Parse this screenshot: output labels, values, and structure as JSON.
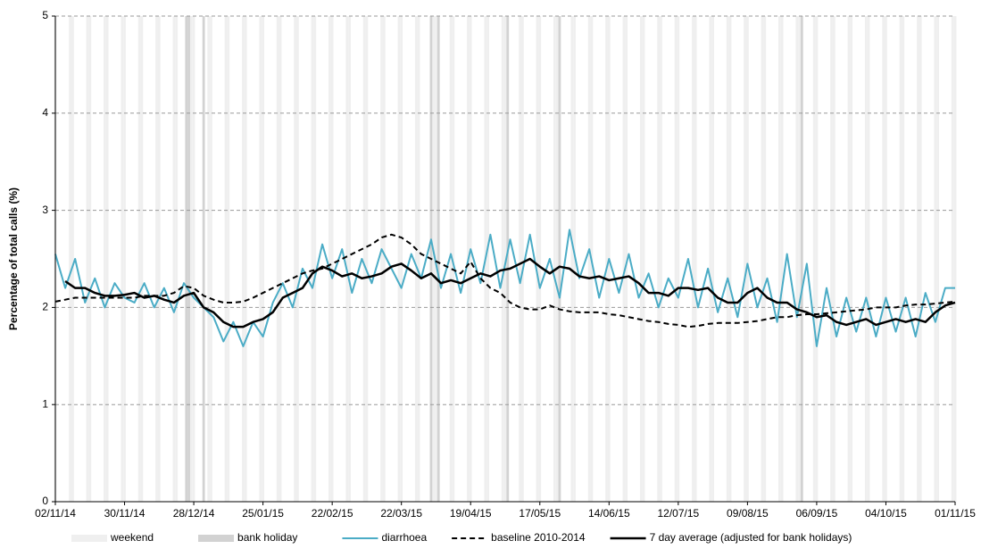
{
  "chart_data": {
    "type": "line",
    "y_label": "Percentage of total calls (%)",
    "ylim": [
      0,
      5
    ],
    "yticks": [
      0,
      1,
      2,
      3,
      4,
      5
    ],
    "grid": true,
    "xlim": [
      "02/11/14",
      "01/11/15"
    ],
    "xticks": [
      "02/11/14",
      "30/11/14",
      "28/12/14",
      "25/01/15",
      "22/02/15",
      "22/03/15",
      "19/04/15",
      "17/05/15",
      "14/06/15",
      "12/07/15",
      "09/08/15",
      "06/09/15",
      "04/10/15",
      "01/11/15"
    ],
    "shading": [
      {
        "name": "weekend",
        "color": "#efefef"
      },
      {
        "name": "bank holiday",
        "color": "#d2d2d2"
      }
    ],
    "bank_holidays": [
      "25/12/14",
      "26/12/14",
      "01/01/15",
      "03/04/15",
      "06/04/15",
      "04/05/15",
      "25/05/15",
      "31/08/15"
    ],
    "x": [
      "02/11/14",
      "06/11/14",
      "10/11/14",
      "14/11/14",
      "18/11/14",
      "22/11/14",
      "26/11/14",
      "30/11/14",
      "04/12/14",
      "08/12/14",
      "12/12/14",
      "16/12/14",
      "20/12/14",
      "24/12/14",
      "28/12/14",
      "01/01/15",
      "05/01/15",
      "09/01/15",
      "13/01/15",
      "17/01/15",
      "21/01/15",
      "25/01/15",
      "29/01/15",
      "02/02/15",
      "06/02/15",
      "10/02/15",
      "14/02/15",
      "18/02/15",
      "22/02/15",
      "26/02/15",
      "02/03/15",
      "06/03/15",
      "10/03/15",
      "14/03/15",
      "18/03/15",
      "22/03/15",
      "26/03/15",
      "30/03/15",
      "03/04/15",
      "07/04/15",
      "11/04/15",
      "15/04/15",
      "19/04/15",
      "23/04/15",
      "27/04/15",
      "01/05/15",
      "05/05/15",
      "09/05/15",
      "13/05/15",
      "17/05/15",
      "21/05/15",
      "25/05/15",
      "29/05/15",
      "02/06/15",
      "06/06/15",
      "10/06/15",
      "14/06/15",
      "18/06/15",
      "22/06/15",
      "26/06/15",
      "30/06/15",
      "04/07/15",
      "08/07/15",
      "12/07/15",
      "16/07/15",
      "20/07/15",
      "24/07/15",
      "28/07/15",
      "01/08/15",
      "05/08/15",
      "09/08/15",
      "13/08/15",
      "17/08/15",
      "21/08/15",
      "25/08/15",
      "29/08/15",
      "02/09/15",
      "06/09/15",
      "10/09/15",
      "14/09/15",
      "18/09/15",
      "22/09/15",
      "26/09/15",
      "30/09/15",
      "04/10/15",
      "08/10/15",
      "12/10/15",
      "16/10/15",
      "20/10/15",
      "24/10/15",
      "28/10/15",
      "01/11/15"
    ],
    "series": [
      {
        "name": "diarrhoea",
        "color": "#4bacc6",
        "style": "solid",
        "values": [
          2.55,
          2.2,
          2.5,
          2.05,
          2.3,
          2.0,
          2.25,
          2.1,
          2.05,
          2.25,
          2.0,
          2.2,
          1.95,
          2.25,
          2.1,
          2.0,
          1.9,
          1.65,
          1.85,
          1.6,
          1.85,
          1.7,
          2.05,
          2.25,
          2.0,
          2.4,
          2.2,
          2.65,
          2.3,
          2.6,
          2.15,
          2.5,
          2.25,
          2.6,
          2.4,
          2.2,
          2.55,
          2.3,
          2.7,
          2.2,
          2.55,
          2.15,
          2.6,
          2.25,
          2.75,
          2.2,
          2.7,
          2.25,
          2.75,
          2.2,
          2.5,
          2.1,
          2.8,
          2.3,
          2.6,
          2.1,
          2.5,
          2.15,
          2.55,
          2.1,
          2.35,
          2.0,
          2.3,
          2.1,
          2.5,
          2.0,
          2.4,
          1.95,
          2.3,
          1.9,
          2.45,
          2.0,
          2.3,
          1.85,
          2.55,
          1.9,
          2.45,
          1.6,
          2.2,
          1.7,
          2.1,
          1.75,
          2.1,
          1.7,
          2.1,
          1.75,
          2.1,
          1.7,
          2.15,
          1.85,
          2.2,
          2.2
        ]
      },
      {
        "name": "baseline 2010-2014",
        "color": "#000000",
        "style": "dashed",
        "values": [
          2.06,
          2.08,
          2.1,
          2.1,
          2.1,
          2.1,
          2.1,
          2.1,
          2.1,
          2.12,
          2.12,
          2.12,
          2.15,
          2.22,
          2.2,
          2.12,
          2.08,
          2.05,
          2.05,
          2.06,
          2.1,
          2.15,
          2.2,
          2.25,
          2.3,
          2.35,
          2.38,
          2.4,
          2.45,
          2.5,
          2.55,
          2.6,
          2.65,
          2.72,
          2.75,
          2.72,
          2.65,
          2.55,
          2.5,
          2.45,
          2.4,
          2.35,
          2.47,
          2.3,
          2.2,
          2.15,
          2.05,
          2.0,
          1.98,
          1.98,
          2.02,
          1.98,
          1.96,
          1.95,
          1.95,
          1.95,
          1.93,
          1.92,
          1.9,
          1.88,
          1.86,
          1.85,
          1.83,
          1.82,
          1.8,
          1.81,
          1.83,
          1.84,
          1.84,
          1.84,
          1.85,
          1.86,
          1.88,
          1.9,
          1.9,
          1.92,
          1.93,
          1.93,
          1.94,
          1.95,
          1.96,
          1.97,
          1.98,
          2.0,
          2.0,
          2.0,
          2.02,
          2.03,
          2.03,
          2.04,
          2.05,
          2.06
        ]
      },
      {
        "name": "7 day average (adjusted for bank holidays)",
        "color": "#000000",
        "style": "thick",
        "values": [
          null,
          2.27,
          2.2,
          2.2,
          2.15,
          2.12,
          2.12,
          2.13,
          2.15,
          2.1,
          2.12,
          2.08,
          2.05,
          2.12,
          2.15,
          2.0,
          1.95,
          1.85,
          1.8,
          1.8,
          1.85,
          1.88,
          1.95,
          2.1,
          2.15,
          2.2,
          2.35,
          2.42,
          2.38,
          2.32,
          2.35,
          2.3,
          2.32,
          2.35,
          2.42,
          2.45,
          2.38,
          2.3,
          2.35,
          2.25,
          2.28,
          2.25,
          2.3,
          2.35,
          2.32,
          2.38,
          2.4,
          2.45,
          2.5,
          2.42,
          2.35,
          2.42,
          2.4,
          2.32,
          2.3,
          2.32,
          2.28,
          2.3,
          2.32,
          2.25,
          2.15,
          2.15,
          2.12,
          2.2,
          2.2,
          2.18,
          2.2,
          2.1,
          2.05,
          2.05,
          2.15,
          2.2,
          2.1,
          2.05,
          2.05,
          1.98,
          1.95,
          1.9,
          1.92,
          1.85,
          1.82,
          1.85,
          1.88,
          1.82,
          1.85,
          1.88,
          1.85,
          1.88,
          1.85,
          1.95,
          2.02,
          2.05
        ]
      }
    ]
  }
}
